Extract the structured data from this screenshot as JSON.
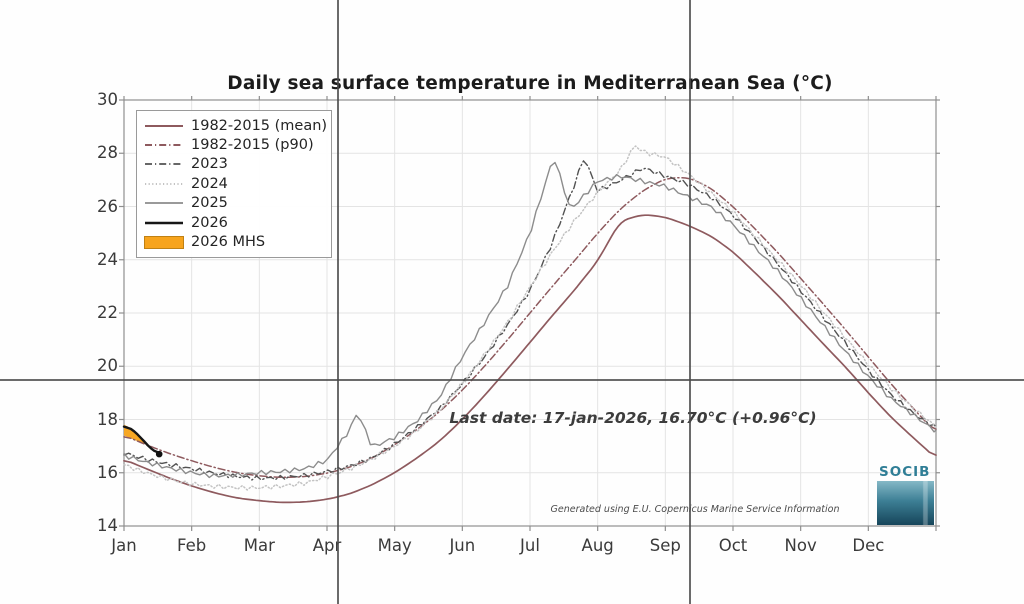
{
  "chart_data": {
    "type": "line",
    "title": "Daily sea surface temperature in Mediterranean Sea (°C)",
    "xlabel": "",
    "ylabel": "",
    "ylim": [
      14,
      30
    ],
    "yticks": [
      30,
      28,
      26,
      24,
      22,
      20,
      18,
      16,
      14
    ],
    "xcategories": [
      "Jan",
      "Feb",
      "Mar",
      "Apr",
      "May",
      "Jun",
      "Jul",
      "Aug",
      "Sep",
      "Oct",
      "Nov",
      "Dec"
    ],
    "grid": true,
    "legend_position": "upper-left",
    "annotation": "Last date: 17-jan-2026, 16.70°C (+0.96°C)",
    "attribution": "Generated using E.U. Copernicus Marine Service Information",
    "x_units": "months (0 = Jan 1, 12 = Dec 31)",
    "y_units": "°C",
    "series": [
      {
        "name": "1982-2015 (mean)",
        "color": "#8e5a5e",
        "width": 1.7,
        "dash": "",
        "wiggle": false,
        "points": [
          [
            0,
            16.5
          ],
          [
            0.33,
            16.15
          ],
          [
            0.67,
            15.8
          ],
          [
            1,
            15.5
          ],
          [
            1.33,
            15.25
          ],
          [
            1.67,
            15.05
          ],
          [
            2,
            14.95
          ],
          [
            2.33,
            14.88
          ],
          [
            2.67,
            14.9
          ],
          [
            3,
            15.0
          ],
          [
            3.33,
            15.2
          ],
          [
            3.67,
            15.55
          ],
          [
            4,
            16.0
          ],
          [
            4.33,
            16.55
          ],
          [
            4.67,
            17.2
          ],
          [
            5,
            18.0
          ],
          [
            5.33,
            18.9
          ],
          [
            5.67,
            19.9
          ],
          [
            6,
            20.9
          ],
          [
            6.33,
            21.9
          ],
          [
            6.67,
            22.9
          ],
          [
            7,
            23.95
          ],
          [
            7.33,
            25.45
          ],
          [
            7.67,
            25.7
          ],
          [
            8,
            25.6
          ],
          [
            8.33,
            25.3
          ],
          [
            8.67,
            24.9
          ],
          [
            9,
            24.3
          ],
          [
            9.33,
            23.5
          ],
          [
            9.67,
            22.65
          ],
          [
            10,
            21.75
          ],
          [
            10.33,
            20.85
          ],
          [
            10.67,
            19.95
          ],
          [
            11,
            19.0
          ],
          [
            11.33,
            18.1
          ],
          [
            11.67,
            17.3
          ],
          [
            12,
            16.55
          ]
        ]
      },
      {
        "name": "1982-2015 (p90)",
        "color": "#8e5a5e",
        "width": 1.5,
        "dash": "7 3 1.2 3",
        "wiggle": false,
        "points": [
          [
            0,
            17.4
          ],
          [
            0.33,
            17.05
          ],
          [
            0.67,
            16.72
          ],
          [
            1,
            16.45
          ],
          [
            1.33,
            16.2
          ],
          [
            1.67,
            16.0
          ],
          [
            2,
            15.88
          ],
          [
            2.33,
            15.82
          ],
          [
            2.67,
            15.85
          ],
          [
            3,
            15.98
          ],
          [
            3.33,
            16.2
          ],
          [
            3.67,
            16.55
          ],
          [
            4,
            17.05
          ],
          [
            4.33,
            17.62
          ],
          [
            4.67,
            18.3
          ],
          [
            5,
            19.1
          ],
          [
            5.33,
            20.0
          ],
          [
            5.67,
            21.0
          ],
          [
            6,
            22.0
          ],
          [
            6.33,
            23.0
          ],
          [
            6.67,
            24.0
          ],
          [
            7,
            25.0
          ],
          [
            7.33,
            25.9
          ],
          [
            7.67,
            26.6
          ],
          [
            8,
            27.05
          ],
          [
            8.33,
            27.1
          ],
          [
            8.67,
            26.7
          ],
          [
            9,
            26.0
          ],
          [
            9.33,
            25.15
          ],
          [
            9.67,
            24.25
          ],
          [
            10,
            23.3
          ],
          [
            10.33,
            22.35
          ],
          [
            10.67,
            21.35
          ],
          [
            11,
            20.35
          ],
          [
            11.33,
            19.35
          ],
          [
            11.67,
            18.4
          ],
          [
            12,
            17.5
          ]
        ]
      },
      {
        "name": "2023",
        "color": "#525252",
        "width": 1.4,
        "dash": "7 3 1.2 3",
        "wiggle": true,
        "points": [
          [
            0,
            16.7
          ],
          [
            0.33,
            16.45
          ],
          [
            0.67,
            16.25
          ],
          [
            1,
            16.1
          ],
          [
            1.33,
            15.95
          ],
          [
            1.67,
            15.85
          ],
          [
            2,
            15.8
          ],
          [
            2.33,
            15.85
          ],
          [
            2.67,
            15.95
          ],
          [
            3,
            16.1
          ],
          [
            3.33,
            16.3
          ],
          [
            3.67,
            16.6
          ],
          [
            4,
            17.1
          ],
          [
            4.33,
            17.7
          ],
          [
            4.67,
            18.4
          ],
          [
            5,
            19.3
          ],
          [
            5.33,
            20.3
          ],
          [
            5.67,
            21.5
          ],
          [
            6,
            22.8
          ],
          [
            6.33,
            24.6
          ],
          [
            6.67,
            26.9
          ],
          [
            6.8,
            27.85
          ],
          [
            7,
            26.6
          ],
          [
            7.33,
            27.0
          ],
          [
            7.67,
            27.5
          ],
          [
            8,
            27.2
          ],
          [
            8.33,
            26.9
          ],
          [
            8.67,
            26.4
          ],
          [
            9,
            25.7
          ],
          [
            9.33,
            24.8
          ],
          [
            9.67,
            23.8
          ],
          [
            10,
            22.8
          ],
          [
            10.33,
            21.8
          ],
          [
            10.67,
            20.8
          ],
          [
            11,
            19.8
          ],
          [
            11.33,
            18.9
          ],
          [
            11.67,
            18.2
          ],
          [
            12,
            17.7
          ]
        ]
      },
      {
        "name": "2024",
        "color": "#c3c3c3",
        "width": 1.5,
        "dash": "1.2 2.4",
        "wiggle": true,
        "points": [
          [
            0,
            16.35
          ],
          [
            0.33,
            16.05
          ],
          [
            0.67,
            15.8
          ],
          [
            1,
            15.6
          ],
          [
            1.33,
            15.5
          ],
          [
            1.67,
            15.42
          ],
          [
            2,
            15.4
          ],
          [
            2.33,
            15.45
          ],
          [
            2.67,
            15.55
          ],
          [
            3,
            15.8
          ],
          [
            3.33,
            16.1
          ],
          [
            3.67,
            16.5
          ],
          [
            4,
            17.0
          ],
          [
            4.33,
            17.6
          ],
          [
            4.67,
            18.4
          ],
          [
            5,
            19.4
          ],
          [
            5.33,
            20.5
          ],
          [
            5.67,
            21.7
          ],
          [
            6,
            23.0
          ],
          [
            6.33,
            24.3
          ],
          [
            6.67,
            25.5
          ],
          [
            7,
            26.5
          ],
          [
            7.33,
            27.3
          ],
          [
            7.55,
            28.25
          ],
          [
            7.67,
            28.0
          ],
          [
            8,
            27.8
          ],
          [
            8.33,
            27.2
          ],
          [
            8.67,
            26.5
          ],
          [
            9,
            25.8
          ],
          [
            9.33,
            24.9
          ],
          [
            9.67,
            24.0
          ],
          [
            10,
            23.1
          ],
          [
            10.33,
            22.1
          ],
          [
            10.67,
            21.1
          ],
          [
            11,
            20.1
          ],
          [
            11.33,
            19.2
          ],
          [
            11.67,
            18.4
          ],
          [
            12,
            17.7
          ]
        ]
      },
      {
        "name": "2025",
        "color": "#8c8c8c",
        "width": 1.4,
        "dash": "",
        "wiggle": true,
        "points": [
          [
            0,
            16.6
          ],
          [
            0.33,
            16.35
          ],
          [
            0.67,
            16.15
          ],
          [
            1,
            16.0
          ],
          [
            1.33,
            15.9
          ],
          [
            1.67,
            15.95
          ],
          [
            2,
            16.05
          ],
          [
            2.33,
            16.1
          ],
          [
            2.67,
            16.2
          ],
          [
            3,
            16.5
          ],
          [
            3.33,
            17.6
          ],
          [
            3.45,
            18.3
          ],
          [
            3.67,
            16.95
          ],
          [
            4,
            17.3
          ],
          [
            4.33,
            17.9
          ],
          [
            4.67,
            18.8
          ],
          [
            5,
            20.3
          ],
          [
            5.33,
            21.6
          ],
          [
            5.67,
            23.0
          ],
          [
            6,
            25.0
          ],
          [
            6.35,
            27.9
          ],
          [
            6.6,
            25.9
          ],
          [
            6.67,
            26.1
          ],
          [
            7,
            27.0
          ],
          [
            7.33,
            27.2
          ],
          [
            7.67,
            27.0
          ],
          [
            8,
            26.8
          ],
          [
            8.33,
            26.4
          ],
          [
            8.67,
            26.0
          ],
          [
            9,
            25.3
          ],
          [
            9.33,
            24.4
          ],
          [
            9.67,
            23.5
          ],
          [
            10,
            22.5
          ],
          [
            10.33,
            21.5
          ],
          [
            10.67,
            20.5
          ],
          [
            11,
            19.6
          ],
          [
            11.33,
            18.8
          ],
          [
            11.67,
            18.2
          ],
          [
            12,
            17.6
          ]
        ]
      },
      {
        "name": "2026",
        "color": "#161616",
        "width": 2.4,
        "dash": "",
        "wiggle": false,
        "points": [
          [
            0,
            17.8
          ],
          [
            0.07,
            17.72
          ],
          [
            0.13,
            17.6
          ],
          [
            0.19,
            17.5
          ],
          [
            0.26,
            17.3
          ],
          [
            0.32,
            17.1
          ],
          [
            0.39,
            16.9
          ],
          [
            0.45,
            16.78
          ],
          [
            0.52,
            16.7
          ]
        ]
      }
    ],
    "mhs": {
      "label": "2026 MHS",
      "color": "#f7a41d",
      "description_series_above": "2026",
      "description_series_below": "1982-2015 (p90)"
    },
    "last_point": {
      "x": 0.52,
      "value": 16.7,
      "marker_color": "#111111"
    }
  },
  "footer": {
    "logo_text": "SOCIB"
  },
  "style_colors": {
    "grid": "#e4e4e4",
    "frame": "#8f8f8f",
    "crosshair": "#4a4a4a"
  }
}
